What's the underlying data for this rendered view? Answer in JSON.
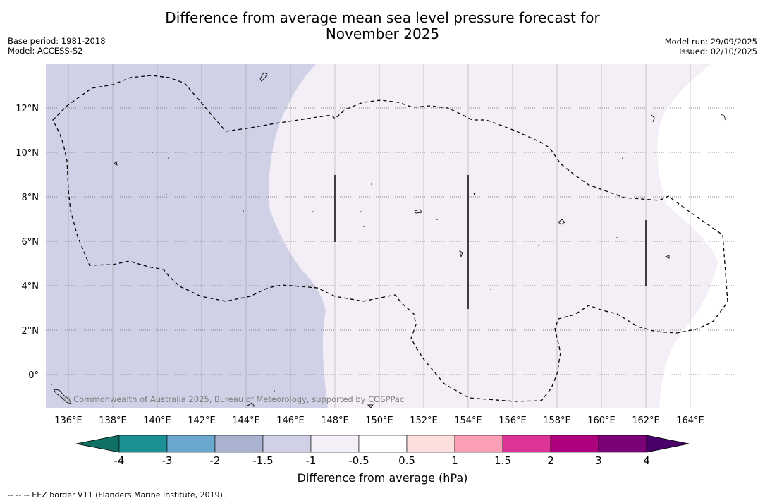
{
  "title": {
    "line1": "Difference from average mean sea level pressure forecast for",
    "line2": "November 2025"
  },
  "meta_left": {
    "base_period": "Base period: 1981-2018",
    "model": "Model: ACCESS-S2"
  },
  "meta_right": {
    "model_run": "Model run: 29/09/2025",
    "issued": "Issued: 02/10/2025"
  },
  "map": {
    "lon_range": [
      135,
      166
    ],
    "lat_range": [
      -1.5,
      14
    ],
    "lon_ticks": [
      "136°E",
      "138°E",
      "140°E",
      "142°E",
      "144°E",
      "146°E",
      "148°E",
      "150°E",
      "152°E",
      "154°E",
      "156°E",
      "158°E",
      "160°E",
      "162°E",
      "164°E"
    ],
    "lat_ticks": [
      "12°N",
      "10°N",
      "8°N",
      "6°N",
      "4°N",
      "2°N",
      "0°"
    ],
    "copyright": "© Commonwealth of Australia 2025, Bureau of Meteorology, supported by COSPPac",
    "fill_colors": {
      "minus_1_5_to_minus_1": "#d0d1e6",
      "minus_1_to_minus_0_5": "#f4eef6",
      "minus_0_5_to_0_5": "#ffffff"
    }
  },
  "colorbar": {
    "tick_labels": [
      "-4",
      "-3",
      "-2",
      "-1.5",
      "-1",
      "-0.5",
      "0.5",
      "1",
      "1.5",
      "2",
      "3",
      "4"
    ],
    "colors": [
      "#1b9196",
      "#6aa8d0",
      "#a9b3cf",
      "#d0d1e6",
      "#f4eef6",
      "#ffffff",
      "#fde0dd",
      "#fa9fb5",
      "#dd3497",
      "#ae017e",
      "#7a0177"
    ],
    "under_color": "#0f7063",
    "over_color": "#49006a",
    "label": "Difference from average (hPa)"
  },
  "footnote": "--  --  -- EEZ border V11 (Flanders Marine Institute, 2019)."
}
